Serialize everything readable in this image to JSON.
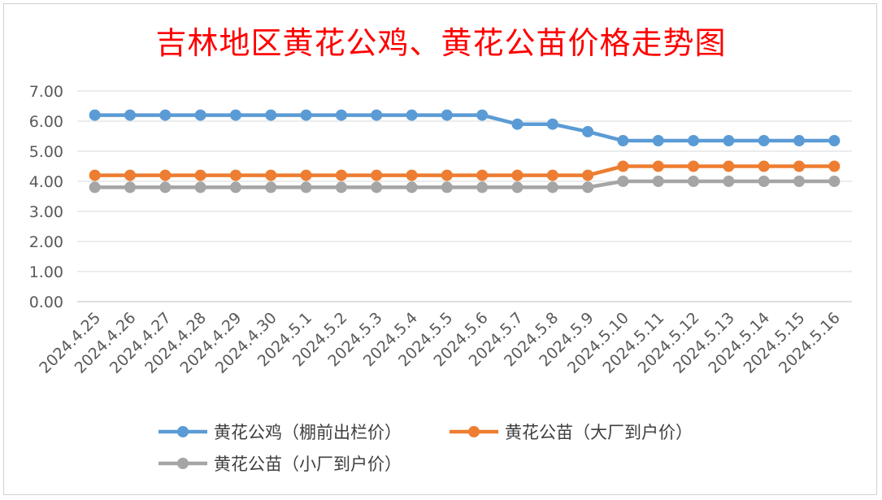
{
  "chart_data": {
    "type": "line",
    "title": "吉林地区黄花公鸡、黄花公苗价格走势图",
    "categories": [
      "2024.4.25",
      "2024.4.26",
      "2024.4.27",
      "2024.4.28",
      "2024.4.29",
      "2024.4.30",
      "2024.5.1",
      "2024.5.2",
      "2024.5.3",
      "2024.5.4",
      "2024.5.5",
      "2024.5.6",
      "2024.5.7",
      "2024.5.8",
      "2024.5.9",
      "2024.5.10",
      "2024.5.11",
      "2024.5.12",
      "2024.5.13",
      "2024.5.14",
      "2024.5.15",
      "2024.5.16"
    ],
    "yticks": [
      "0.00",
      "1.00",
      "2.00",
      "3.00",
      "4.00",
      "5.00",
      "6.00",
      "7.00"
    ],
    "ylim": [
      0,
      7
    ],
    "grid": true,
    "legend_position": "bottom",
    "series": [
      {
        "name": "黄花公鸡（棚前出栏价）",
        "color": "#5b9bd5",
        "values": [
          6.2,
          6.2,
          6.2,
          6.2,
          6.2,
          6.2,
          6.2,
          6.2,
          6.2,
          6.2,
          6.2,
          6.2,
          5.9,
          5.9,
          5.65,
          5.35,
          5.35,
          5.35,
          5.35,
          5.35,
          5.35,
          5.35
        ]
      },
      {
        "name": "黄花公苗（大厂到户价）",
        "color": "#ed7d31",
        "values": [
          4.2,
          4.2,
          4.2,
          4.2,
          4.2,
          4.2,
          4.2,
          4.2,
          4.2,
          4.2,
          4.2,
          4.2,
          4.2,
          4.2,
          4.2,
          4.5,
          4.5,
          4.5,
          4.5,
          4.5,
          4.5,
          4.5
        ]
      },
      {
        "name": "黄花公苗（小厂到户价）",
        "color": "#a5a5a5",
        "values": [
          3.8,
          3.8,
          3.8,
          3.8,
          3.8,
          3.8,
          3.8,
          3.8,
          3.8,
          3.8,
          3.8,
          3.8,
          3.8,
          3.8,
          3.8,
          4.0,
          4.0,
          4.0,
          4.0,
          4.0,
          4.0,
          4.0
        ]
      }
    ]
  }
}
